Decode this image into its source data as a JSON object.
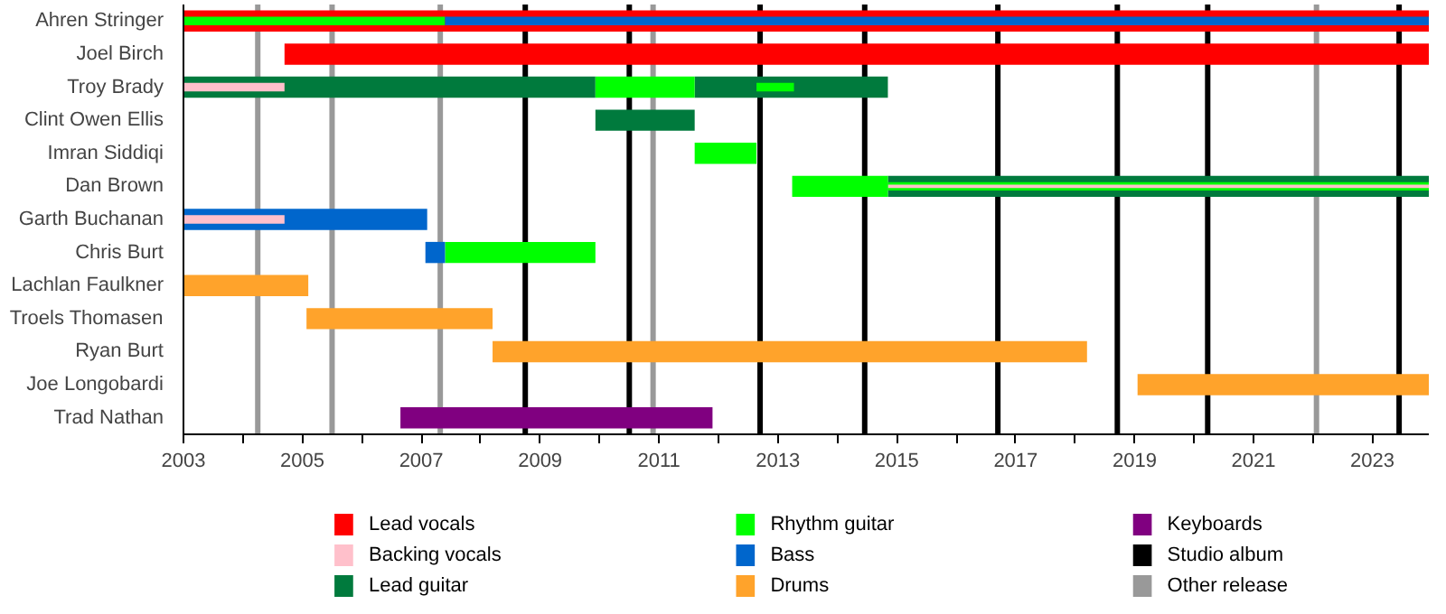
{
  "chart_data": {
    "type": "bar",
    "orientation": "horizontal",
    "categories": [
      "Ahren Stringer",
      "Joel Birch",
      "Troy Brady",
      "Clint Owen Ellis",
      "Imran Siddiqi",
      "Dan Brown",
      "Garth Buchanan",
      "Chris Burt",
      "Lachlan Faulkner",
      "Troels Thomasen",
      "Ryan Burt",
      "Joe Longobardi",
      "Trad Nathan"
    ],
    "xlim": [
      2003,
      2023.95
    ],
    "xticks": [
      2003,
      {
        "value": 2004,
        "label": null
      },
      2005,
      {
        "value": 2006,
        "label": null
      },
      2007,
      {
        "value": 2008,
        "label": null
      },
      2009,
      {
        "value": 2010,
        "label": null
      },
      2011,
      {
        "value": 2012,
        "label": null
      },
      2013,
      {
        "value": 2014,
        "label": null
      },
      2015,
      {
        "value": 2016,
        "label": null
      },
      2017,
      {
        "value": 2018,
        "label": null
      },
      2019,
      {
        "value": 2020,
        "label": null
      },
      2021,
      {
        "value": 2022,
        "label": null
      },
      2023
    ],
    "grid": false,
    "legend": "bottom",
    "series": [
      {
        "name": "Lead vocals",
        "color": "#ff0000",
        "base": [
          2003,
          2004.7,
          null,
          null,
          null,
          null,
          null,
          null,
          null,
          null,
          null,
          null,
          null
        ],
        "values": [
          20.95,
          19.25,
          null,
          null,
          null,
          null,
          null,
          null,
          null,
          null,
          null,
          null,
          null
        ]
      },
      {
        "color": "#007a3d",
        "base": [
          null,
          null,
          2003,
          null,
          null,
          2014.85,
          null,
          null,
          null,
          null,
          null,
          null,
          null
        ],
        "values": [
          null,
          null,
          6.93,
          null,
          null,
          9.1,
          null,
          null,
          null,
          null,
          null,
          null,
          null
        ]
      },
      {
        "color": "#00ff00",
        "base": [
          2003,
          null,
          null,
          null,
          null,
          2014.85,
          null,
          null,
          null,
          null,
          null,
          null,
          null
        ],
        "values": [
          4.4,
          null,
          null,
          null,
          null,
          9.1,
          null,
          null,
          null,
          null,
          null,
          null,
          null
        ]
      },
      {
        "name": "Backing vocals",
        "color": "#ffc0cb",
        "base": [
          null,
          null,
          2003,
          null,
          null,
          2014.85,
          null,
          null,
          null,
          null,
          null,
          null,
          null
        ],
        "values": [
          null,
          null,
          1.7,
          null,
          null,
          9.1,
          null,
          null,
          null,
          null,
          null,
          null,
          null
        ]
      },
      {
        "name": "Lead guitar",
        "color": "#007a3d",
        "base": [
          null,
          null,
          2011.6,
          2009.93,
          null,
          null,
          null,
          null,
          null,
          null,
          null,
          null,
          null
        ],
        "values": [
          null,
          null,
          3.25,
          1.67,
          null,
          null,
          null,
          null,
          null,
          null,
          null,
          null,
          null
        ]
      },
      {
        "name": "Rhythm guitar",
        "color": "#00ff00",
        "base": [
          null,
          null,
          2009.93,
          null,
          2011.6,
          2013.24,
          null,
          2007.4,
          null,
          null,
          null,
          null,
          null
        ],
        "values": [
          null,
          null,
          1.67,
          null,
          1.04,
          1.61,
          null,
          2.53,
          null,
          null,
          null,
          null,
          null
        ]
      },
      {
        "color": "#00ff00",
        "base": [
          null,
          null,
          2012.64,
          null,
          null,
          null,
          null,
          null,
          null,
          null,
          null,
          null,
          null
        ],
        "values": [
          null,
          null,
          0.63,
          null,
          null,
          null,
          null,
          null,
          null,
          null,
          null,
          null,
          null
        ]
      },
      {
        "name": "Bass",
        "color": "#0066cc",
        "base": [
          2007.4,
          null,
          null,
          null,
          null,
          null,
          2003,
          2007.07,
          null,
          null,
          null,
          null,
          null
        ],
        "values": [
          16.55,
          null,
          null,
          null,
          null,
          null,
          4.1,
          0.33,
          null,
          null,
          null,
          null,
          null
        ]
      },
      {
        "color": "#ffc0cb",
        "base": [
          null,
          null,
          null,
          null,
          null,
          null,
          2003,
          null,
          null,
          null,
          null,
          null,
          null
        ],
        "values": [
          null,
          null,
          null,
          null,
          null,
          null,
          1.7,
          null,
          null,
          null,
          null,
          null,
          null
        ]
      },
      {
        "name": "Drums",
        "color": "#ffa32b",
        "base": [
          null,
          null,
          null,
          null,
          null,
          null,
          null,
          null,
          2003,
          2005.07,
          2008.2,
          2019.05,
          null
        ],
        "values": [
          null,
          null,
          null,
          null,
          null,
          null,
          null,
          null,
          2.1,
          3.13,
          10.0,
          4.9,
          null
        ]
      },
      {
        "name": "Keyboards",
        "color": "#800080",
        "base": [
          null,
          null,
          null,
          null,
          null,
          null,
          null,
          null,
          null,
          null,
          null,
          null,
          2006.65
        ],
        "values": [
          null,
          null,
          null,
          null,
          null,
          null,
          null,
          null,
          null,
          null,
          null,
          null,
          5.25
        ]
      }
    ],
    "ref_lines": [
      {
        "axis": "x",
        "value": 2008.75,
        "label": "Studio album",
        "color": "#000000"
      },
      {
        "axis": "x",
        "value": 2010.5,
        "color": "#000000"
      },
      {
        "axis": "x",
        "value": 2012.7,
        "color": "#000000"
      },
      {
        "axis": "x",
        "value": 2014.46,
        "color": "#000000"
      },
      {
        "axis": "x",
        "value": 2016.7,
        "color": "#000000"
      },
      {
        "axis": "x",
        "value": 2018.71,
        "color": "#000000"
      },
      {
        "axis": "x",
        "value": 2020.23,
        "color": "#000000"
      },
      {
        "axis": "x",
        "value": 2023.45,
        "color": "#000000"
      },
      {
        "axis": "x",
        "value": 2004.25,
        "label": "Other release",
        "color": "#999999"
      },
      {
        "axis": "x",
        "value": 2005.5,
        "color": "#999999"
      },
      {
        "axis": "x",
        "value": 2007.32,
        "color": "#999999"
      },
      {
        "axis": "x",
        "value": 2010.9,
        "color": "#999999"
      },
      {
        "axis": "x",
        "value": 2022.06,
        "color": "#999999"
      }
    ]
  }
}
